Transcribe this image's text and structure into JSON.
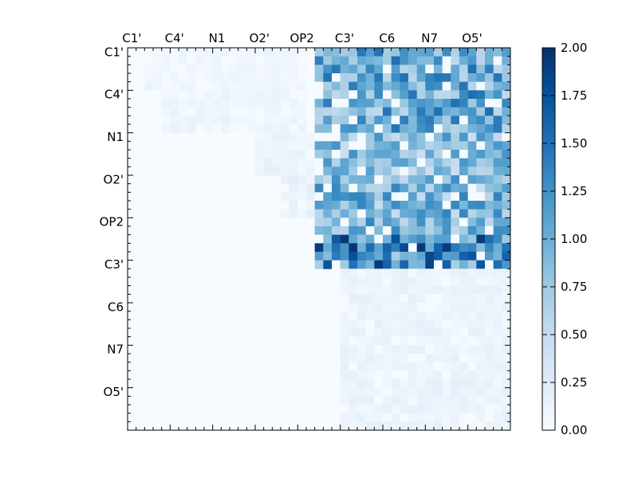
{
  "chart_data": {
    "type": "heatmap",
    "title": "",
    "xlabel": "",
    "ylabel": "",
    "grid": false,
    "n_rows": 45,
    "n_cols": 45,
    "x_tick_labels": [
      "C1'",
      "C4'",
      "N1",
      "O2'",
      "OP2",
      "C3'",
      "C6",
      "N7",
      "O5'"
    ],
    "y_tick_labels": [
      "C1'",
      "C4'",
      "N1",
      "O2'",
      "OP2",
      "C3'",
      "C6",
      "N7",
      "O5'"
    ],
    "tick_every": 5,
    "colormap": "Blues",
    "colors": {
      "low": "#f7fbff",
      "high": "#08306b"
    },
    "colorbar": {
      "range": [
        0.0,
        2.0
      ],
      "ticks": [
        "0.00",
        "0.25",
        "0.50",
        "0.75",
        "1.00",
        "1.25",
        "1.50",
        "1.75",
        "2.00"
      ]
    },
    "block_estimates": [
      {
        "rows": [
          0,
          4
        ],
        "cols": [
          2,
          20
        ],
        "value": 0.08
      },
      {
        "rows": [
          5,
          9
        ],
        "cols": [
          4,
          20
        ],
        "value": 0.1
      },
      {
        "rows": [
          10,
          14
        ],
        "cols": [
          15,
          22
        ],
        "value": 0.12
      },
      {
        "rows": [
          15,
          19
        ],
        "cols": [
          18,
          22
        ],
        "value": 0.15
      },
      {
        "rows": [
          0,
          9
        ],
        "cols": [
          22,
          44
        ],
        "value": 1.05
      },
      {
        "rows": [
          10,
          14
        ],
        "cols": [
          22,
          44
        ],
        "value": 0.85
      },
      {
        "rows": [
          15,
          21
        ],
        "cols": [
          22,
          44
        ],
        "value": 0.95
      },
      {
        "rows": [
          22,
          25
        ],
        "cols": [
          22,
          44
        ],
        "value": 1.35
      },
      {
        "rows": [
          26,
          44
        ],
        "cols": [
          25,
          44
        ],
        "value": 0.12
      }
    ]
  }
}
